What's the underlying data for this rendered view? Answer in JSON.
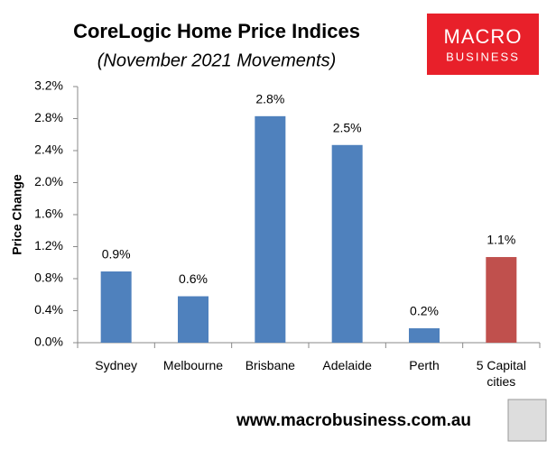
{
  "chart_data": {
    "type": "bar",
    "title": "CoreLogic Home Price Indices",
    "subtitle": "(November 2021 Movements)",
    "y_label": "Price Change",
    "categories": [
      "Sydney",
      "Melbourne",
      "Brisbane",
      "Adelaide",
      "Perth",
      "5 Capital cities"
    ],
    "values": [
      0.89,
      0.58,
      2.83,
      2.47,
      0.18,
      1.07
    ],
    "value_labels": [
      "0.9%",
      "0.6%",
      "2.8%",
      "2.5%",
      "0.2%",
      "1.1%"
    ],
    "colors": [
      "#4f81bd",
      "#4f81bd",
      "#4f81bd",
      "#4f81bd",
      "#4f81bd",
      "#c0504d"
    ],
    "ylim": [
      0,
      3.2
    ],
    "yticks": [
      {
        "value": 0,
        "label": "0.0%"
      },
      {
        "value": 0.4,
        "label": "0.4%"
      },
      {
        "value": 0.8,
        "label": "0.8%"
      },
      {
        "value": 1.2,
        "label": "1.2%"
      },
      {
        "value": 1.6,
        "label": "1.6%"
      },
      {
        "value": 2.0,
        "label": "2.0%"
      },
      {
        "value": 2.4,
        "label": "2.4%"
      },
      {
        "value": 2.8,
        "label": "2.8%"
      },
      {
        "value": 3.2,
        "label": "3.2%"
      }
    ],
    "grid": false
  },
  "logo": {
    "line1": "MACRO",
    "line2": "BUSINESS"
  },
  "footer": "www.macrobusiness.com.au"
}
